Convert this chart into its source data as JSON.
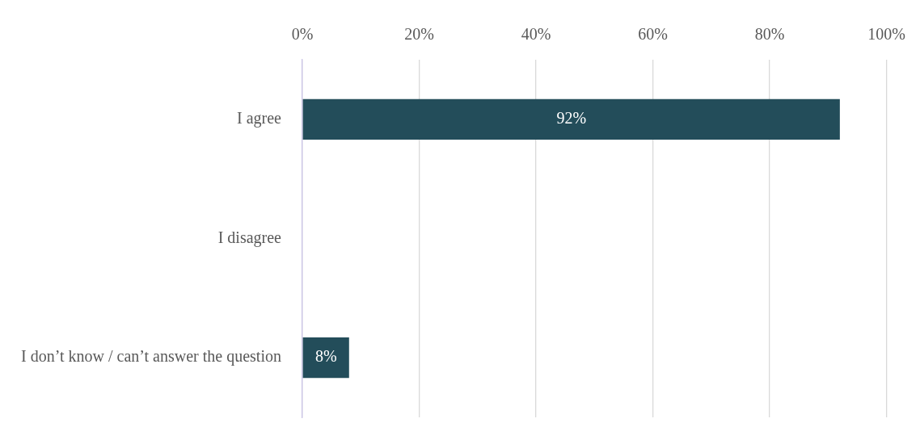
{
  "chart_data": {
    "type": "bar",
    "orientation": "horizontal",
    "categories": [
      "I agree",
      "I disagree",
      "I don’t know / can’t answer the question"
    ],
    "values": [
      92,
      0,
      8
    ],
    "color": "#234d5a",
    "value_labels": [
      "92%",
      null,
      "8%"
    ],
    "xlim": [
      0,
      100
    ],
    "xticks": [
      {
        "value": 0,
        "label": "0%"
      },
      {
        "value": 20,
        "label": "20%"
      },
      {
        "value": 40,
        "label": "40%"
      },
      {
        "value": 60,
        "label": "60%"
      },
      {
        "value": 80,
        "label": "80%"
      },
      {
        "value": 100,
        "label": "100%"
      }
    ],
    "grid": "x",
    "legend": false
  }
}
